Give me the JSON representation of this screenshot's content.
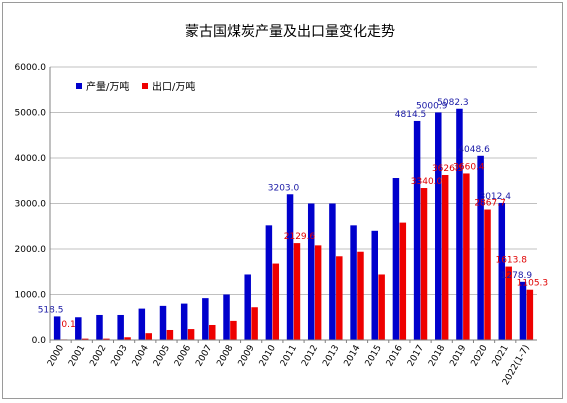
{
  "chart_data": {
    "type": "bar",
    "title": "蒙古国煤炭产量及出口量变化走势",
    "xlabel": "",
    "ylabel": "",
    "ylim": [
      0,
      6000
    ],
    "yticks": [
      0,
      1000,
      2000,
      3000,
      4000,
      5000,
      6000
    ],
    "ytick_labels": [
      "0.0",
      "1000.0",
      "2000.0",
      "3000.0",
      "4000.0",
      "5000.0",
      "6000.0"
    ],
    "grid": true,
    "legend_position": "top-left",
    "categories": [
      "2000",
      "2001",
      "2002",
      "2003",
      "2004",
      "2005",
      "2006",
      "2007",
      "2008",
      "2009",
      "2010",
      "2011",
      "2012",
      "2013",
      "2014",
      "2015",
      "2016",
      "2017",
      "2018",
      "2019",
      "2020",
      "2021",
      "2022(1-7)"
    ],
    "series": [
      {
        "name": "产量/万吨",
        "color": "#0000cc",
        "label_color": "#1a1aa6",
        "values": [
          518.5,
          500,
          550,
          550,
          690,
          750,
          800,
          920,
          1000,
          1440,
          2520,
          3203.0,
          3000,
          3000,
          2520,
          2400,
          3560,
          4814.5,
          5000.9,
          5082.3,
          4048.6,
          3012.4,
          1278.9
        ],
        "data_labels": [
          "518.5",
          "",
          "",
          "",
          "",
          "",
          "",
          "",
          "",
          "",
          "",
          "3203.0",
          "",
          "",
          "",
          "",
          "",
          "4814.5",
          "5000.9",
          "5082.3",
          "4048.6",
          "3012.4",
          "1278.9"
        ]
      },
      {
        "name": "出口/万吨",
        "color": "#ee0000",
        "label_color": "#e00000",
        "values": [
          0.1,
          30,
          30,
          60,
          150,
          220,
          240,
          330,
          420,
          720,
          1680,
          2129.6,
          2080,
          1840,
          1940,
          1440,
          2580,
          3340.0,
          3626.5,
          3660.4,
          2867.7,
          1613.8,
          1105.3
        ],
        "data_labels": [
          "0.1",
          "",
          "",
          "",
          "",
          "",
          "",
          "",
          "",
          "",
          "",
          "2129.6",
          "",
          "",
          "",
          "",
          "",
          "3340.0",
          "3626.5",
          "3660.4",
          "2867.7",
          "1613.8",
          "1105.3"
        ]
      }
    ]
  }
}
